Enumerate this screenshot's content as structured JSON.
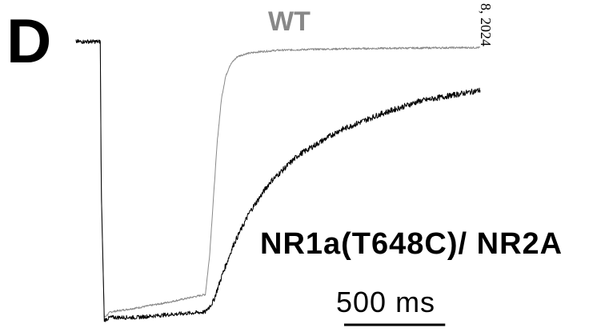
{
  "panel_label": "D",
  "date_fragment": "8, 2024",
  "chart_data": {
    "type": "line",
    "title": "",
    "xlabel": "",
    "ylabel": "",
    "scale_bar": {
      "label": "500 ms",
      "duration_ms": 500
    },
    "series": [
      {
        "name": "WT",
        "color": "#888888",
        "x": [
          0,
          120,
          125,
          140,
          170,
          300,
          450,
          640,
          660,
          680,
          700,
          720,
          740,
          760,
          780,
          800,
          840,
          900,
          1000,
          1200,
          1500,
          1800,
          2000
        ],
        "y": [
          0,
          0,
          -0.55,
          -1.02,
          -1.0,
          -0.985,
          -0.965,
          -0.935,
          -0.8,
          -0.58,
          -0.36,
          -0.21,
          -0.13,
          -0.09,
          -0.07,
          -0.055,
          -0.045,
          -0.038,
          -0.032,
          -0.028,
          -0.025,
          -0.023,
          -0.022
        ]
      },
      {
        "name": "NR1a(T648C)/ NR2A",
        "color": "#000000",
        "x": [
          0,
          120,
          125,
          140,
          170,
          300,
          450,
          640,
          680,
          720,
          780,
          860,
          960,
          1100,
          1300,
          1500,
          1700,
          1850,
          2000
        ],
        "y": [
          0,
          0,
          -0.55,
          -1.03,
          -1.02,
          -1.02,
          -1.01,
          -1.0,
          -0.96,
          -0.87,
          -0.75,
          -0.63,
          -0.52,
          -0.42,
          -0.33,
          -0.27,
          -0.22,
          -0.2,
          -0.18
        ]
      }
    ]
  }
}
